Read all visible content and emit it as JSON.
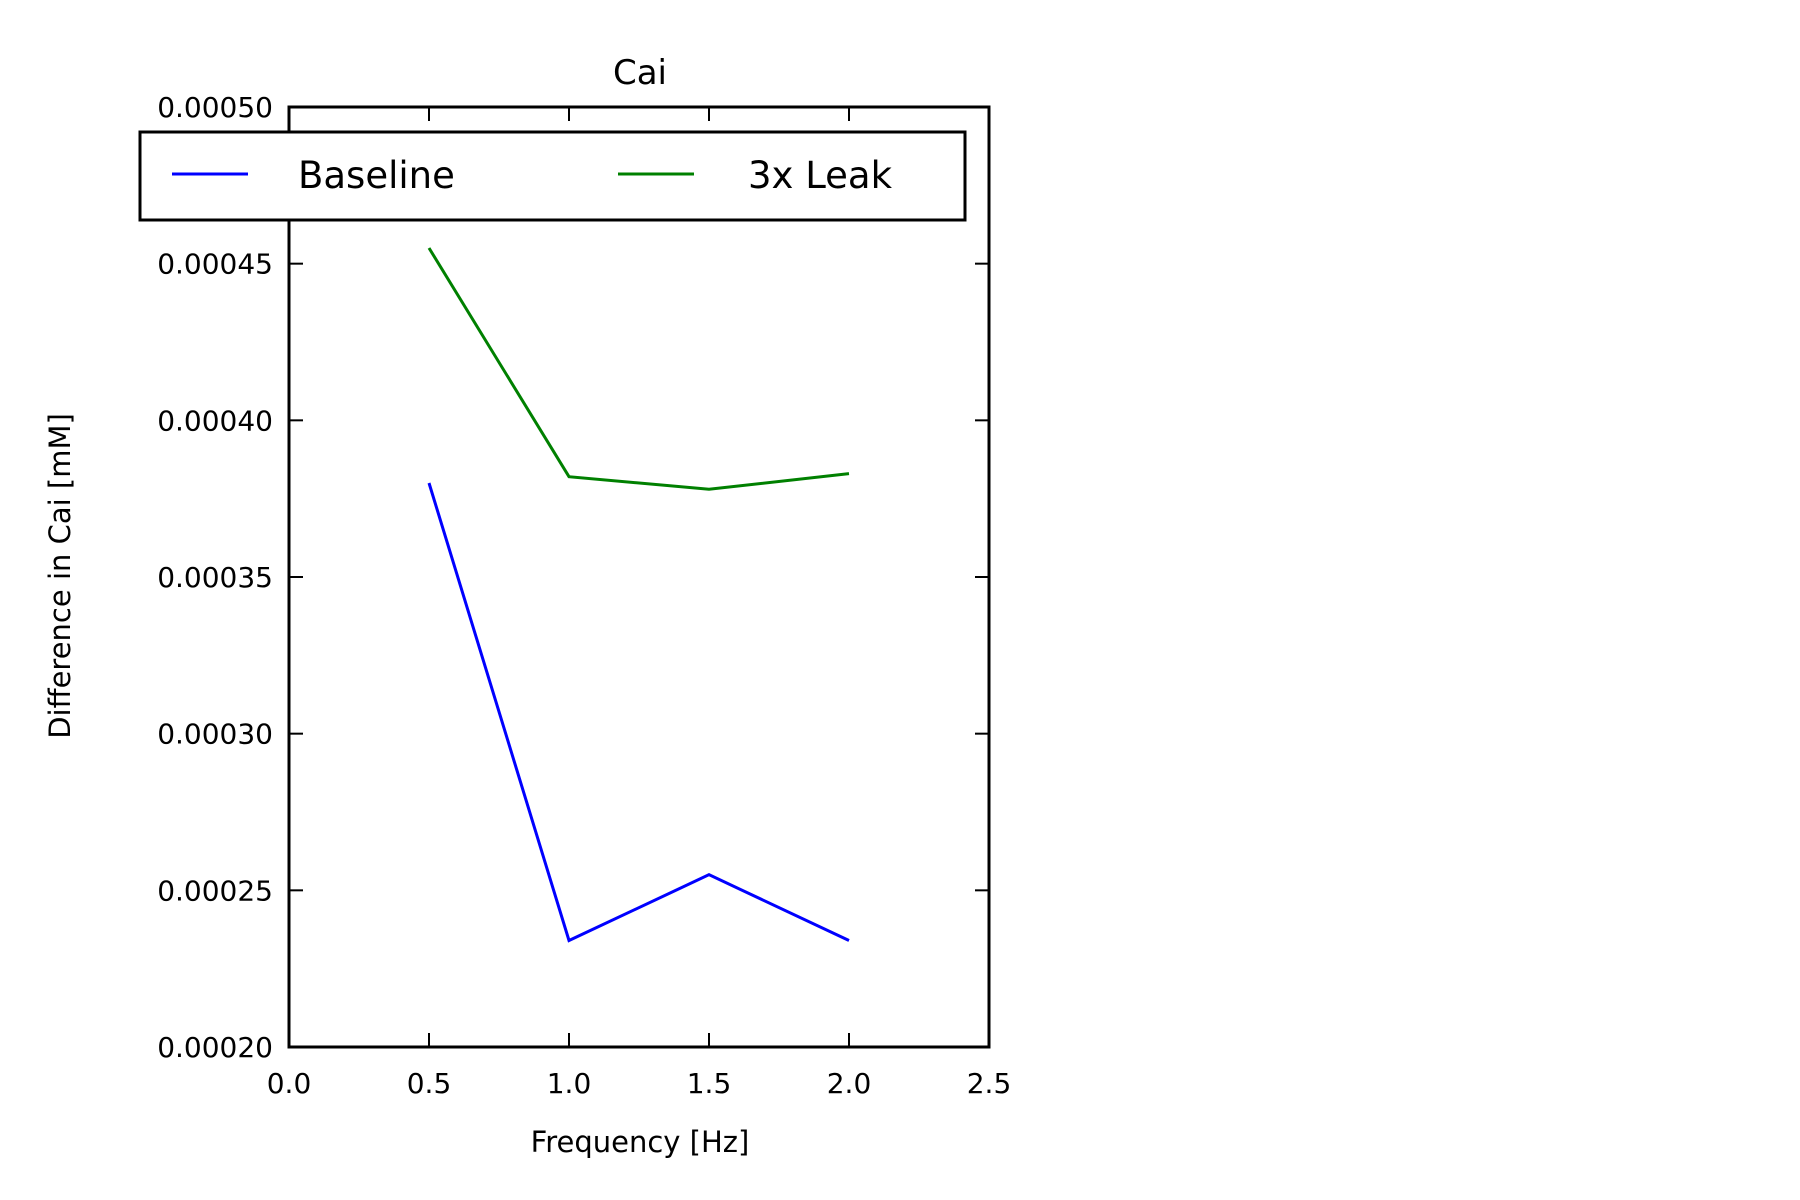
{
  "chart_data": {
    "type": "line",
    "title": "Cai",
    "xlabel": "Frequency [Hz]",
    "ylabel": "Difference in Cai [mM]",
    "xlim": [
      0.0,
      2.5
    ],
    "ylim": [
      0.0002,
      0.0005
    ],
    "x_ticks": [
      "0.0",
      "0.5",
      "1.0",
      "1.5",
      "2.0",
      "2.5"
    ],
    "y_ticks": [
      "0.00020",
      "0.00025",
      "0.00030",
      "0.00035",
      "0.00040",
      "0.00045",
      "0.00050"
    ],
    "x": [
      0.5,
      1.0,
      1.5,
      2.0
    ],
    "series": [
      {
        "name": "Baseline",
        "color": "#0000ff",
        "values": [
          0.00038,
          0.000234,
          0.000255,
          0.000234
        ]
      },
      {
        "name": "3x Leak",
        "color": "#008000",
        "values": [
          0.000455,
          0.000382,
          0.000378,
          0.000383
        ]
      }
    ],
    "grid": false,
    "legend": {
      "placement": "top",
      "columns": 2
    }
  }
}
